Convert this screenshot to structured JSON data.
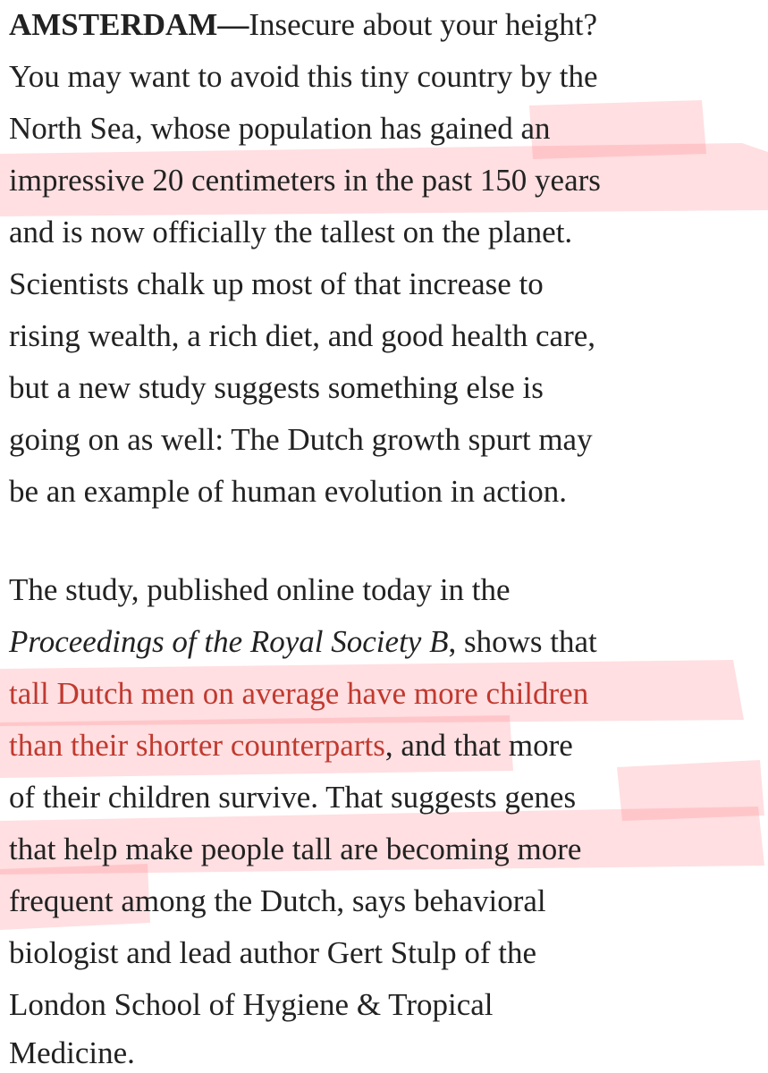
{
  "paragraphs": [
    [
      [
        "AMSTERDAM—",
        "Insecure about your height?"
      ],
      [
        "You may want to avoid this tiny country by the"
      ],
      [
        "North Sea, whose population has gained an"
      ],
      [
        "impressive 20 centimeters in the past 150 years"
      ],
      [
        "and is now officially the tallest on the planet."
      ],
      [
        "Scientists chalk up most of that increase to"
      ],
      [
        "rising wealth, a rich diet, and good health care,"
      ],
      [
        "but a new study suggests something else is"
      ],
      [
        "going on as well: The Dutch growth spurt may"
      ],
      [
        "be an example of human evolution in action."
      ]
    ],
    [
      [
        "The study, published online today in the"
      ],
      [
        "Proceedings of the Royal Society B",
        ", shows that"
      ],
      [
        "tall Dutch men on average have more children"
      ],
      [
        "than their shorter counterparts",
        ", and that more"
      ],
      [
        "of their children survive. That suggests genes"
      ],
      [
        "that help make people tall are becoming more"
      ],
      [
        "frequent among the Dutch, says behavioral"
      ],
      [
        "biologist and lead author Gert Stulp of the"
      ],
      [
        "London School of Hygiene & Tropical"
      ],
      [
        "Medicine."
      ]
    ]
  ]
}
